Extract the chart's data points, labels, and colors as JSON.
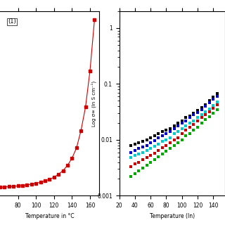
{
  "left_plot": {
    "xlabel": "Temperature in °C",
    "ylabel": "",
    "x": [
      60,
      65,
      70,
      75,
      80,
      85,
      90,
      95,
      100,
      105,
      110,
      115,
      120,
      125,
      130,
      135,
      140,
      145,
      150,
      155,
      160,
      165
    ],
    "y": [
      0.5,
      0.52,
      0.55,
      0.57,
      0.6,
      0.63,
      0.67,
      0.72,
      0.78,
      0.85,
      0.95,
      1.05,
      1.2,
      1.4,
      1.65,
      2.0,
      2.5,
      3.2,
      4.4,
      6.0,
      8.5,
      12.0
    ],
    "color": "#cc0000",
    "marker": "s",
    "markersize": 3,
    "linewidth": 0.8,
    "xlim": [
      60,
      170
    ],
    "ylim_bottom": 0.35,
    "xticks": [
      80,
      100,
      120,
      140,
      160
    ],
    "label_text": "(1)"
  },
  "right_plot": {
    "xlabel": "Temperature (ln)",
    "ylabel": "Log σ∞ (ln S cm⁻¹)",
    "xlim": [
      20,
      155
    ],
    "ylim": [
      0.001,
      2.0
    ],
    "xticks": [
      20,
      40,
      60,
      80,
      100,
      120,
      140
    ],
    "yticks_log": [
      0.001,
      0.01,
      0.1,
      1
    ],
    "series": [
      {
        "color": "#000000",
        "marker": "s",
        "x": [
          35,
          40,
          45,
          50,
          55,
          60,
          65,
          70,
          75,
          80,
          85,
          90,
          95,
          100,
          105,
          110,
          115,
          120,
          125,
          130,
          135,
          140,
          145
        ],
        "y": [
          0.008,
          0.0085,
          0.009,
          0.0095,
          0.01,
          0.011,
          0.012,
          0.013,
          0.014,
          0.015,
          0.016,
          0.018,
          0.02,
          0.022,
          0.025,
          0.027,
          0.03,
          0.034,
          0.038,
          0.043,
          0.05,
          0.058,
          0.068
        ]
      },
      {
        "color": "#0000cc",
        "marker": "s",
        "x": [
          35,
          40,
          45,
          50,
          55,
          60,
          65,
          70,
          75,
          80,
          85,
          90,
          95,
          100,
          105,
          110,
          115,
          120,
          125,
          130,
          135,
          140,
          145
        ],
        "y": [
          0.006,
          0.0065,
          0.007,
          0.0075,
          0.008,
          0.0088,
          0.0096,
          0.011,
          0.012,
          0.013,
          0.014,
          0.016,
          0.018,
          0.02,
          0.022,
          0.025,
          0.028,
          0.031,
          0.035,
          0.04,
          0.046,
          0.053,
          0.06
        ]
      },
      {
        "color": "#00cccc",
        "marker": "s",
        "x": [
          35,
          40,
          45,
          50,
          55,
          60,
          65,
          70,
          75,
          80,
          85,
          90,
          95,
          100,
          105,
          110,
          115,
          120,
          125,
          130,
          135,
          140,
          145
        ],
        "y": [
          0.0048,
          0.0052,
          0.0056,
          0.006,
          0.0065,
          0.007,
          0.0077,
          0.0085,
          0.0093,
          0.01,
          0.011,
          0.013,
          0.014,
          0.016,
          0.018,
          0.02,
          0.022,
          0.025,
          0.028,
          0.032,
          0.036,
          0.041,
          0.047
        ]
      },
      {
        "color": "#cc0000",
        "marker": "s",
        "x": [
          35,
          40,
          45,
          50,
          55,
          60,
          65,
          70,
          75,
          80,
          85,
          90,
          95,
          100,
          105,
          110,
          115,
          120,
          125,
          130,
          135,
          140,
          145
        ],
        "y": [
          0.0033,
          0.0037,
          0.004,
          0.0044,
          0.0048,
          0.0053,
          0.0058,
          0.0065,
          0.0072,
          0.008,
          0.009,
          0.01,
          0.011,
          0.013,
          0.015,
          0.017,
          0.019,
          0.022,
          0.025,
          0.028,
          0.032,
          0.037,
          0.042
        ]
      },
      {
        "color": "#00aa00",
        "marker": "s",
        "x": [
          35,
          40,
          45,
          50,
          55,
          60,
          65,
          70,
          75,
          80,
          85,
          90,
          95,
          100,
          105,
          110,
          115,
          120,
          125,
          130,
          135,
          140,
          145
        ],
        "y": [
          0.0022,
          0.0025,
          0.0028,
          0.0031,
          0.0035,
          0.0039,
          0.0044,
          0.005,
          0.0056,
          0.0063,
          0.0071,
          0.008,
          0.009,
          0.01,
          0.012,
          0.013,
          0.015,
          0.017,
          0.02,
          0.023,
          0.026,
          0.03,
          0.035
        ]
      }
    ]
  },
  "bg_color": "#ffffff"
}
